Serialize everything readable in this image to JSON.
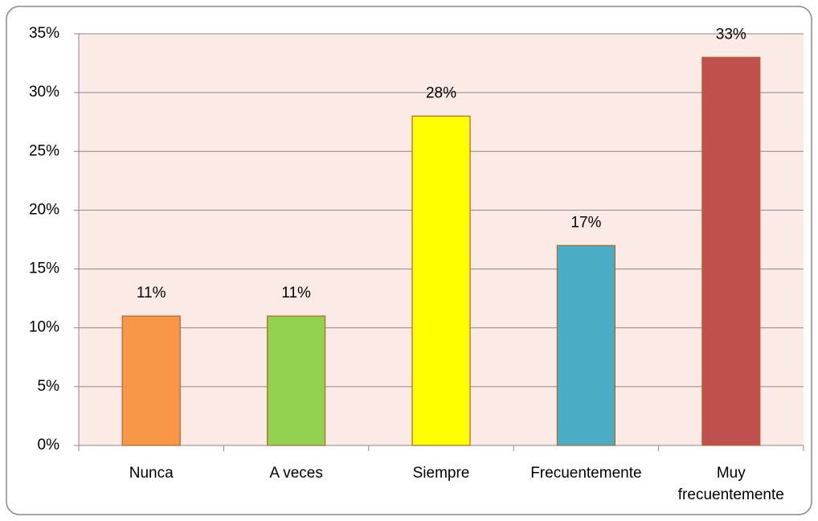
{
  "chart_data": {
    "type": "bar",
    "categories": [
      "Nunca",
      "A veces",
      "Siempre",
      "Frecuentemente",
      "Muy frecuentemente"
    ],
    "values": [
      11,
      11,
      28,
      17,
      33
    ],
    "value_labels": [
      "11%",
      "11%",
      "28%",
      "17%",
      "33%"
    ],
    "colors": [
      "#f79646",
      "#92d050",
      "#ffff00",
      "#4bacc6",
      "#c0504d"
    ],
    "ylim": [
      0,
      35
    ],
    "yticks": [
      {
        "value": 0,
        "label": "0%"
      },
      {
        "value": 5,
        "label": "5%"
      },
      {
        "value": 10,
        "label": "10%"
      },
      {
        "value": 15,
        "label": "15%"
      },
      {
        "value": 20,
        "label": "20%"
      },
      {
        "value": 25,
        "label": "25%"
      },
      {
        "value": 30,
        "label": "30%"
      },
      {
        "value": 35,
        "label": "35%"
      }
    ],
    "grid": true
  }
}
